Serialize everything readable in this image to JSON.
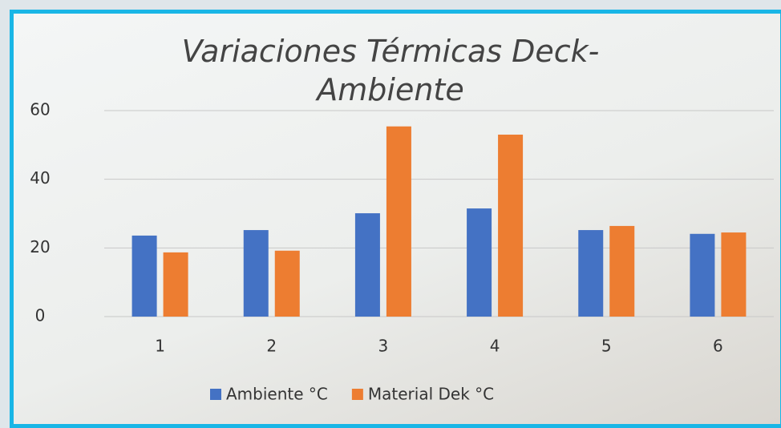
{
  "chart_data": {
    "type": "bar",
    "title": "Variaciones Térmicas Deck-Ambiente",
    "categories": [
      "1",
      "2",
      "3",
      "4",
      "5",
      "6"
    ],
    "series": [
      {
        "name": "Ambiente °C",
        "color": "#4472c4",
        "values": [
          23.6,
          25.2,
          30.1,
          31.5,
          25.2,
          24.1
        ]
      },
      {
        "name": "Material Dek °C",
        "color": "#ed7d31",
        "values": [
          18.7,
          19.2,
          55.4,
          53,
          26.4,
          24.5
        ]
      }
    ],
    "ylim": [
      0,
      60
    ],
    "yticks": [
      0,
      20,
      40,
      60
    ],
    "grid": true
  }
}
